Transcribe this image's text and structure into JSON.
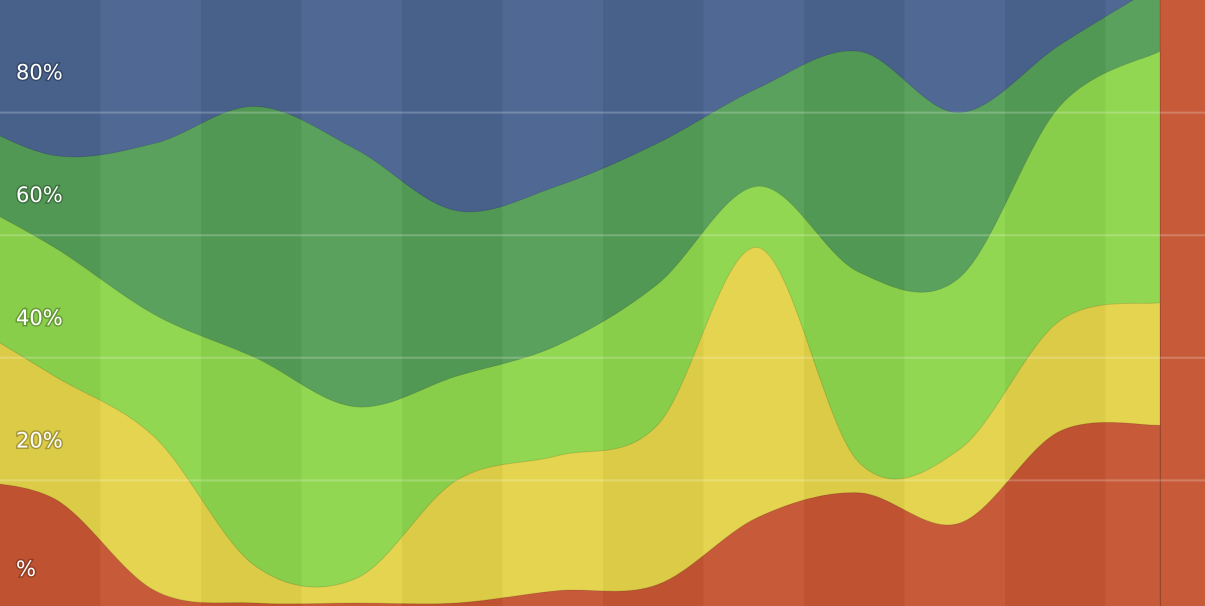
{
  "chart_data": {
    "type": "area",
    "stacked": true,
    "normalized": true,
    "x": [
      0,
      1,
      2,
      3,
      4,
      5,
      6,
      7,
      8,
      9,
      10,
      11,
      12
    ],
    "ylim": [
      0,
      100
    ],
    "yticks": [
      {
        "value": 0,
        "label": "%"
      },
      {
        "value": 20,
        "label": "20%"
      },
      {
        "value": 40,
        "label": "40%"
      },
      {
        "value": 60,
        "label": "60%"
      },
      {
        "value": 80,
        "label": "80%"
      }
    ],
    "grid": true,
    "legend": "none",
    "series": [
      {
        "color": "#c65633",
        "values": [
          20,
          17,
          2,
          0,
          0,
          0,
          2,
          3,
          14,
          18,
          13,
          28,
          29
        ]
      },
      {
        "color": "#e5d34a",
        "values": [
          27,
          20,
          25,
          6,
          4,
          20,
          22,
          26,
          44,
          5,
          12,
          18,
          20
        ]
      },
      {
        "color": "#8fd64d",
        "values": [
          20,
          21,
          20,
          34,
          28,
          17,
          18,
          23,
          10,
          31,
          28,
          35,
          41
        ]
      },
      {
        "color": "#569e59",
        "values": [
          13,
          15,
          28,
          41,
          42,
          27,
          26,
          23,
          16,
          36,
          27,
          10,
          11
        ]
      },
      {
        "color": "#4a6591",
        "values": [
          20,
          27,
          25,
          19,
          26,
          36,
          32,
          25,
          16,
          10,
          20,
          9,
          0
        ]
      }
    ]
  }
}
